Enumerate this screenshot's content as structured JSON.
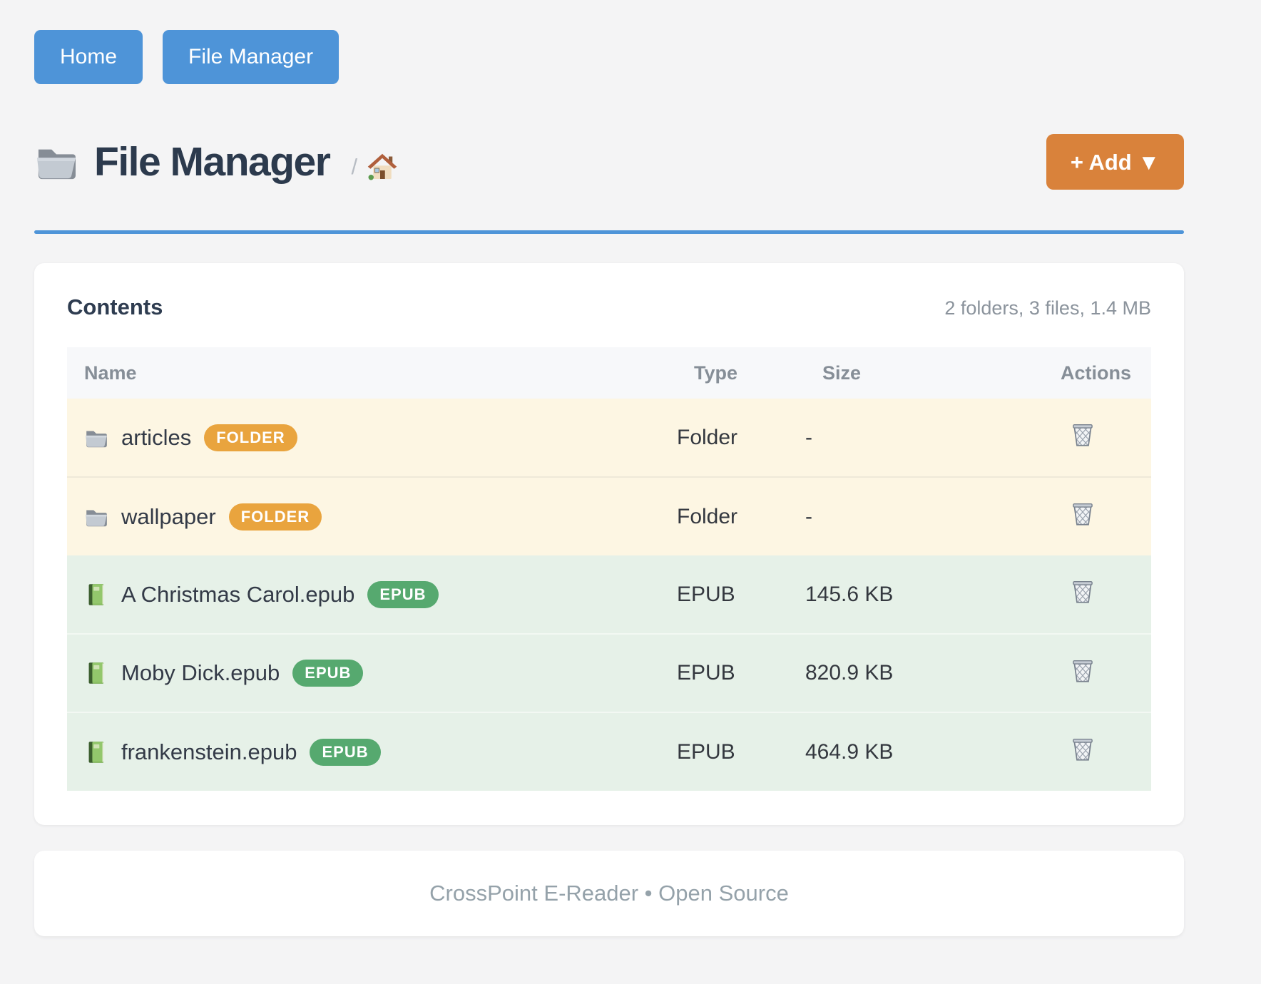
{
  "nav": {
    "home_label": "Home",
    "file_manager_label": "File Manager"
  },
  "header": {
    "title": "File Manager",
    "title_icon": "folder-icon",
    "breadcrumb_separator": "/",
    "breadcrumb_icon": "house-icon",
    "add_button_label": "+ Add ▼"
  },
  "contents": {
    "heading": "Contents",
    "summary": "2 folders, 3 files, 1.4 MB",
    "columns": [
      "Name",
      "Type",
      "Size",
      "Actions"
    ],
    "action_icon": "trash-icon",
    "rows": [
      {
        "name": "articles",
        "badge": "FOLDER",
        "type": "Folder",
        "size": "-",
        "kind": "folder",
        "icon": "folder-icon"
      },
      {
        "name": "wallpaper",
        "badge": "FOLDER",
        "type": "Folder",
        "size": "-",
        "kind": "folder",
        "icon": "folder-icon"
      },
      {
        "name": "A Christmas Carol.epub",
        "badge": "EPUB",
        "type": "EPUB",
        "size": "145.6 KB",
        "kind": "epub",
        "icon": "book-icon"
      },
      {
        "name": "Moby Dick.epub",
        "badge": "EPUB",
        "type": "EPUB",
        "size": "820.9 KB",
        "kind": "epub",
        "icon": "book-icon"
      },
      {
        "name": "frankenstein.epub",
        "badge": "EPUB",
        "type": "EPUB",
        "size": "464.9 KB",
        "kind": "epub",
        "icon": "book-icon"
      }
    ]
  },
  "footer": {
    "text": "CrossPoint E-Reader • Open Source"
  },
  "colors": {
    "page_background": "#f4f4f5",
    "nav_button_blue": "#4e94d8",
    "header_rule_blue": "#4e94d8",
    "add_button_orange": "#d9823b",
    "title_text": "#2c3a4d",
    "folder_row_background": "#fdf6e3",
    "epub_row_background": "#e6f1e8",
    "folder_badge": "#e9a43e",
    "epub_badge": "#56a96f",
    "muted_text": "#8b939c"
  }
}
